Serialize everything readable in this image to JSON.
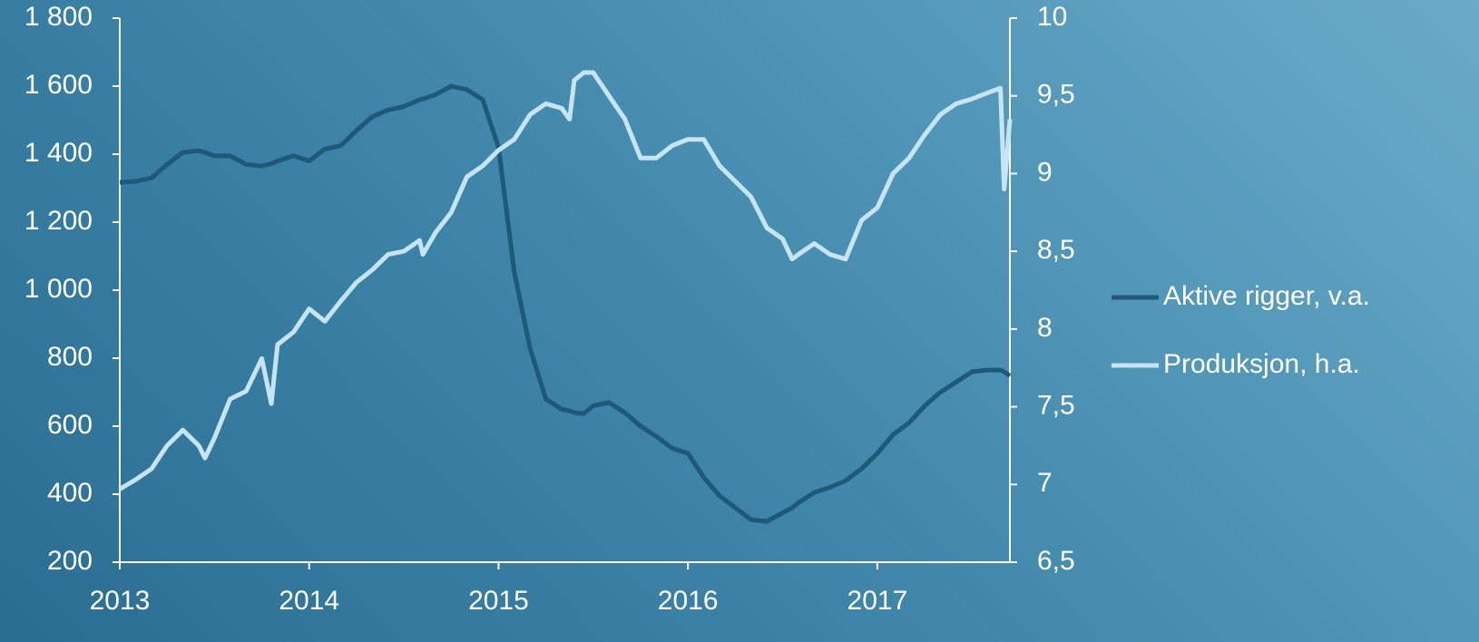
{
  "chart_data": {
    "type": "line",
    "x": [
      2013.0,
      2013.083,
      2013.167,
      2013.25,
      2013.333,
      2013.417,
      2013.45,
      2013.5,
      2013.583,
      2013.667,
      2013.75,
      2013.8,
      2013.833,
      2013.917,
      2014.0,
      2014.083,
      2014.167,
      2014.25,
      2014.333,
      2014.417,
      2014.5,
      2014.583,
      2014.6,
      2014.667,
      2014.75,
      2014.833,
      2014.917,
      2015.0,
      2015.083,
      2015.167,
      2015.25,
      2015.333,
      2015.375,
      2015.4,
      2015.45,
      2015.5,
      2015.583,
      2015.667,
      2015.75,
      2015.833,
      2015.917,
      2016.0,
      2016.083,
      2016.167,
      2016.25,
      2016.333,
      2016.417,
      2016.5,
      2016.55,
      2016.583,
      2016.667,
      2016.75,
      2016.833,
      2016.917,
      2017.0,
      2017.083,
      2017.167,
      2017.25,
      2017.333,
      2017.417,
      2017.5,
      2017.583,
      2017.65,
      2017.67,
      2017.7
    ],
    "series": [
      {
        "name": "Aktive rigger, v.a.",
        "color": "#1f5878",
        "axis": "y",
        "values": [
          1317,
          1320,
          1330,
          1370,
          1405,
          1410,
          1405,
          1395,
          1395,
          1370,
          1365,
          1372,
          1380,
          1395,
          1380,
          1415,
          1425,
          1470,
          1510,
          1530,
          1540,
          1560,
          1562,
          1575,
          1600,
          1590,
          1560,
          1420,
          1053,
          827,
          680,
          650,
          645,
          640,
          637,
          660,
          670,
          640,
          600,
          570,
          535,
          520,
          450,
          395,
          360,
          325,
          320,
          345,
          360,
          375,
          405,
          420,
          440,
          475,
          520,
          575,
          610,
          660,
          700,
          730,
          760,
          765,
          765,
          760,
          748
        ]
      },
      {
        "name": "Produksjon, h.a.",
        "color": "#c6e4f3",
        "axis": "y2",
        "values": [
          6.97,
          7.03,
          7.1,
          7.25,
          7.35,
          7.25,
          7.17,
          7.3,
          7.55,
          7.6,
          7.81,
          7.52,
          7.9,
          7.98,
          8.13,
          8.05,
          8.18,
          8.3,
          8.38,
          8.48,
          8.5,
          8.57,
          8.48,
          8.62,
          8.75,
          8.98,
          9.05,
          9.15,
          9.22,
          9.38,
          9.45,
          9.42,
          9.35,
          9.6,
          9.65,
          9.65,
          9.5,
          9.35,
          9.1,
          9.1,
          9.18,
          9.22,
          9.22,
          9.05,
          8.95,
          8.85,
          8.65,
          8.58,
          8.45,
          8.48,
          8.55,
          8.48,
          8.45,
          8.7,
          8.78,
          9.0,
          9.1,
          9.25,
          9.38,
          9.45,
          9.48,
          9.52,
          9.55,
          8.9,
          9.35
        ]
      }
    ],
    "xlim": [
      2013,
      2017.7
    ],
    "xticks": [
      2013,
      2014,
      2015,
      2016,
      2017
    ],
    "ylim": [
      200,
      1800
    ],
    "yticks": [
      200,
      400,
      600,
      800,
      {
        "value": 1000,
        "label": "1 000"
      },
      {
        "value": 1200,
        "label": "1 200"
      },
      {
        "value": 1400,
        "label": "1 400"
      },
      {
        "value": 1600,
        "label": "1 600"
      },
      {
        "value": 1800,
        "label": "1 800"
      }
    ],
    "y2lim": [
      6.5,
      10
    ],
    "y2ticks": [
      {
        "value": 6.5,
        "label": "6,5"
      },
      7,
      {
        "value": 7.5,
        "label": "7,5"
      },
      8,
      {
        "value": 8.5,
        "label": "8,5"
      },
      9,
      {
        "value": 9.5,
        "label": "9,5"
      },
      10
    ],
    "legend": "right"
  }
}
